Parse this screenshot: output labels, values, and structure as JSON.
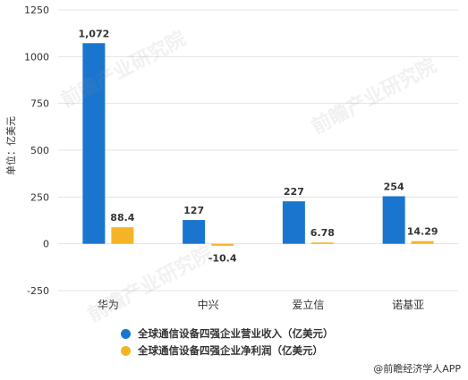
{
  "chart_data": {
    "type": "bar",
    "categories": [
      "华为",
      "中兴",
      "爱立信",
      "诺基亚"
    ],
    "series": [
      {
        "name": "全球通信设备四强企业营业收入（亿美元）",
        "values": [
          1072,
          127,
          227,
          254
        ],
        "labels": [
          "1,072",
          "127",
          "227",
          "254"
        ],
        "color": "#1a75cf"
      },
      {
        "name": "全球通信设备四强企业净利润（亿美元）",
        "values": [
          88.4,
          -10.4,
          6.78,
          14.29
        ],
        "labels": [
          "88.4",
          "-10.4",
          "6.78",
          "14.29"
        ],
        "color": "#f5b427"
      }
    ],
    "ylabel": "单位：亿美元",
    "ylim": [
      -250,
      1250
    ],
    "yticks": [
      -250,
      0,
      250,
      500,
      750,
      1000,
      1250
    ],
    "grid": true,
    "legend_position": "bottom"
  },
  "watermark": "前瞻产业研究院",
  "source": "@前瞻经济学人APP"
}
